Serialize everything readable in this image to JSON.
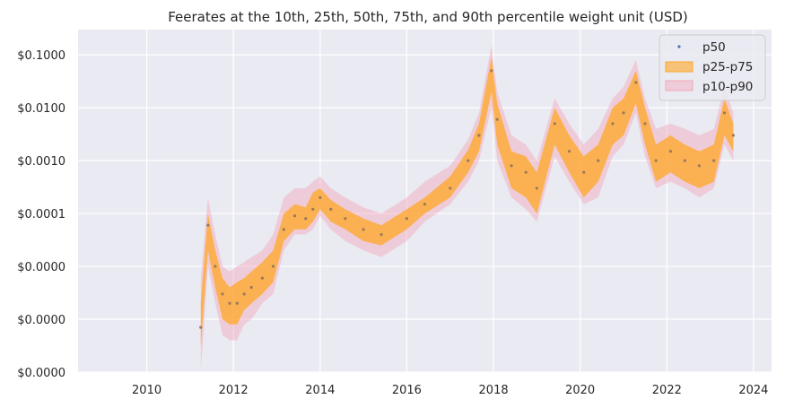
{
  "chart_data": {
    "type": "area",
    "title": "Feerates at the 10th, 25th, 50th, 75th, and 90th percentile weight unit (USD)",
    "xlabel": "",
    "ylabel": "",
    "x_scale": "time",
    "y_scale": "log",
    "xlim": [
      "2008-06-01",
      "2024-06-01"
    ],
    "ylim": [
      1e-07,
      0.3
    ],
    "x_tick_labels": [
      "2010",
      "2012",
      "2014",
      "2016",
      "2018",
      "2020",
      "2022",
      "2024"
    ],
    "y_tick_values": [
      0.1,
      0.01,
      0.001,
      0.0001,
      1e-05,
      1e-06,
      1e-07
    ],
    "y_tick_labels": [
      "$0.1000",
      "$0.0100",
      "$0.0010",
      "$0.0001",
      "$0.0000",
      "$0.0000",
      "$0.0000"
    ],
    "grid": true,
    "legend_position": "top-right",
    "series": [
      {
        "name": "p50",
        "kind": "scatter",
        "color": "#4c72b0",
        "x": [
          "2011-04-01",
          "2011-06-01",
          "2011-08-01",
          "2011-10-01",
          "2011-12-01",
          "2012-02-01",
          "2012-04-01",
          "2012-06-01",
          "2012-09-01",
          "2012-12-01",
          "2013-03-01",
          "2013-06-01",
          "2013-09-01",
          "2013-11-01",
          "2014-01-01",
          "2014-04-01",
          "2014-08-01",
          "2015-01-01",
          "2015-06-01",
          "2016-01-01",
          "2016-06-01",
          "2017-01-01",
          "2017-06-01",
          "2017-09-01",
          "2017-12-15",
          "2018-02-01",
          "2018-06-01",
          "2018-10-01",
          "2019-01-01",
          "2019-06-01",
          "2019-10-01",
          "2020-02-01",
          "2020-06-01",
          "2020-10-01",
          "2021-01-01",
          "2021-04-15",
          "2021-07-01",
          "2021-10-01",
          "2022-02-01",
          "2022-06-01",
          "2022-10-01",
          "2023-02-01",
          "2023-05-01",
          "2023-07-15"
        ],
        "y": [
          7e-07,
          6e-05,
          1e-05,
          3e-06,
          2e-06,
          2e-06,
          3e-06,
          4e-06,
          6e-06,
          1e-05,
          5e-05,
          9e-05,
          8e-05,
          0.00012,
          0.0002,
          0.00012,
          8e-05,
          5e-05,
          4e-05,
          8e-05,
          0.00015,
          0.0003,
          0.001,
          0.003,
          0.05,
          0.006,
          0.0008,
          0.0006,
          0.0003,
          0.005,
          0.0015,
          0.0006,
          0.001,
          0.005,
          0.008,
          0.03,
          0.005,
          0.001,
          0.0015,
          0.001,
          0.0008,
          0.001,
          0.008,
          0.003
        ]
      },
      {
        "name": "p25-p75",
        "kind": "band",
        "color": "#ffa726",
        "x": [
          "2011-04-01",
          "2011-06-01",
          "2011-08-01",
          "2011-10-01",
          "2011-12-01",
          "2012-02-01",
          "2012-04-01",
          "2012-06-01",
          "2012-09-01",
          "2012-12-01",
          "2013-03-01",
          "2013-06-01",
          "2013-09-01",
          "2013-11-01",
          "2014-01-01",
          "2014-04-01",
          "2014-08-01",
          "2015-01-01",
          "2015-06-01",
          "2016-01-01",
          "2016-06-01",
          "2017-01-01",
          "2017-06-01",
          "2017-09-01",
          "2017-12-15",
          "2018-02-01",
          "2018-06-01",
          "2018-10-01",
          "2019-01-01",
          "2019-06-01",
          "2019-10-01",
          "2020-02-01",
          "2020-06-01",
          "2020-10-01",
          "2021-01-01",
          "2021-04-15",
          "2021-07-01",
          "2021-10-01",
          "2022-02-01",
          "2022-06-01",
          "2022-10-01",
          "2023-02-01",
          "2023-05-01",
          "2023-07-15"
        ],
        "low": [
          3e-07,
          2e-05,
          4e-06,
          1e-06,
          8e-07,
          8e-07,
          1.5e-06,
          2e-06,
          3e-06,
          5e-06,
          3e-05,
          5e-05,
          5e-05,
          7e-05,
          0.00012,
          7e-05,
          5e-05,
          3e-05,
          2.5e-05,
          5e-05,
          0.0001,
          0.0002,
          0.0006,
          0.0015,
          0.02,
          0.002,
          0.0003,
          0.0002,
          0.0001,
          0.002,
          0.0006,
          0.0002,
          0.0004,
          0.002,
          0.003,
          0.012,
          0.002,
          0.0004,
          0.0006,
          0.0004,
          0.0003,
          0.0004,
          0.003,
          0.0015
        ],
        "high": [
          2e-06,
          0.0001,
          2e-05,
          6e-06,
          4e-06,
          5e-06,
          6e-06,
          8e-06,
          1.2e-05,
          2e-05,
          0.0001,
          0.00015,
          0.00013,
          0.00025,
          0.0003,
          0.00018,
          0.00012,
          8e-05,
          6e-05,
          0.00012,
          0.0002,
          0.0005,
          0.0016,
          0.005,
          0.09,
          0.012,
          0.0015,
          0.0012,
          0.0006,
          0.01,
          0.003,
          0.0012,
          0.002,
          0.01,
          0.015,
          0.05,
          0.01,
          0.002,
          0.003,
          0.002,
          0.0015,
          0.002,
          0.015,
          0.005
        ]
      },
      {
        "name": "p10-p90",
        "kind": "band",
        "color": "#f4a6b7",
        "x": [
          "2011-04-01",
          "2011-06-01",
          "2011-08-01",
          "2011-10-01",
          "2011-12-01",
          "2012-02-01",
          "2012-04-01",
          "2012-06-01",
          "2012-09-01",
          "2012-12-01",
          "2013-03-01",
          "2013-06-01",
          "2013-09-01",
          "2013-11-01",
          "2014-01-01",
          "2014-04-01",
          "2014-08-01",
          "2015-01-01",
          "2015-06-01",
          "2016-01-01",
          "2016-06-01",
          "2017-01-01",
          "2017-06-01",
          "2017-09-01",
          "2017-12-15",
          "2018-02-01",
          "2018-06-01",
          "2018-10-01",
          "2019-01-01",
          "2019-06-01",
          "2019-10-01",
          "2020-02-01",
          "2020-06-01",
          "2020-10-01",
          "2021-01-01",
          "2021-04-15",
          "2021-07-01",
          "2021-10-01",
          "2022-02-01",
          "2022-06-01",
          "2022-10-01",
          "2023-02-01",
          "2023-05-01",
          "2023-07-15"
        ],
        "low": [
          1e-07,
          1e-05,
          2e-06,
          5e-07,
          4e-07,
          4e-07,
          8e-07,
          1e-06,
          2e-06,
          3e-06,
          2e-05,
          4e-05,
          4e-05,
          5e-05,
          9e-05,
          5e-05,
          3e-05,
          2e-05,
          1.5e-05,
          3e-05,
          7e-05,
          0.00015,
          0.0004,
          0.001,
          0.01,
          0.001,
          0.0002,
          0.00012,
          7e-05,
          0.0012,
          0.0004,
          0.00015,
          0.0002,
          0.0012,
          0.002,
          0.008,
          0.0012,
          0.0003,
          0.0004,
          0.0003,
          0.0002,
          0.0003,
          0.002,
          0.001
        ],
        "high": [
          6e-06,
          0.0002,
          4e-05,
          1e-05,
          8e-06,
          1e-05,
          1.2e-05,
          1.5e-05,
          2e-05,
          4e-05,
          0.0002,
          0.0003,
          0.0003,
          0.0004,
          0.0005,
          0.0003,
          0.0002,
          0.00013,
          0.0001,
          0.0002,
          0.0004,
          0.0008,
          0.0025,
          0.008,
          0.15,
          0.02,
          0.003,
          0.002,
          0.001,
          0.015,
          0.005,
          0.002,
          0.004,
          0.015,
          0.025,
          0.08,
          0.015,
          0.004,
          0.005,
          0.004,
          0.003,
          0.004,
          0.025,
          0.008
        ]
      }
    ]
  }
}
